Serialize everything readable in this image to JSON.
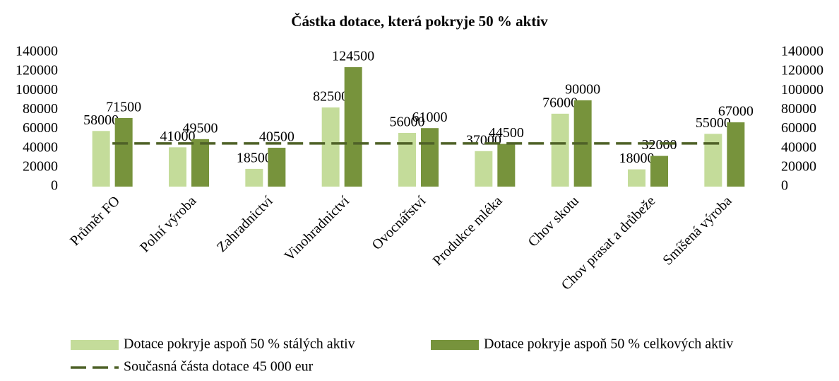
{
  "chart_data": {
    "type": "bar",
    "title": "Částka dotace, která pokryje 50 % aktiv",
    "categories": [
      "Průměr FO",
      "Polní výroba",
      "Zahradnictví",
      "Vinohradnictví",
      "Ovocnářství",
      "Produkce mléka",
      "Chov skotu",
      "Chov prasat a drůbeže",
      "Smíšená výroba"
    ],
    "series": [
      {
        "name": "Dotace pokryje aspoň 50 % stálých aktiv",
        "color": "#c4dc9a",
        "type": "bar",
        "values": [
          58000,
          41000,
          18500,
          82500,
          56000,
          37000,
          76000,
          18000,
          55000
        ]
      },
      {
        "name": "Dotace pokryje aspoň 50 % celkových aktiv",
        "color": "#77933c",
        "type": "bar",
        "values": [
          71500,
          49500,
          40500,
          124500,
          61000,
          44500,
          90000,
          32000,
          67000
        ]
      },
      {
        "name": "Současná částa dotace 45 000 eur",
        "color": "#4f6228",
        "type": "line",
        "dashed": true,
        "axis": "y2",
        "values": [
          45000,
          45000,
          45000,
          45000,
          45000,
          45000,
          45000,
          45000,
          45000
        ]
      }
    ],
    "ylim": [
      0,
      140000
    ],
    "yticks": [
      0,
      20000,
      40000,
      60000,
      80000,
      100000,
      120000,
      140000
    ],
    "y2lim": [
      0,
      140000
    ],
    "y2ticks": [
      0,
      20000,
      40000,
      60000,
      80000,
      100000,
      120000,
      140000
    ],
    "legend": "bottom"
  }
}
